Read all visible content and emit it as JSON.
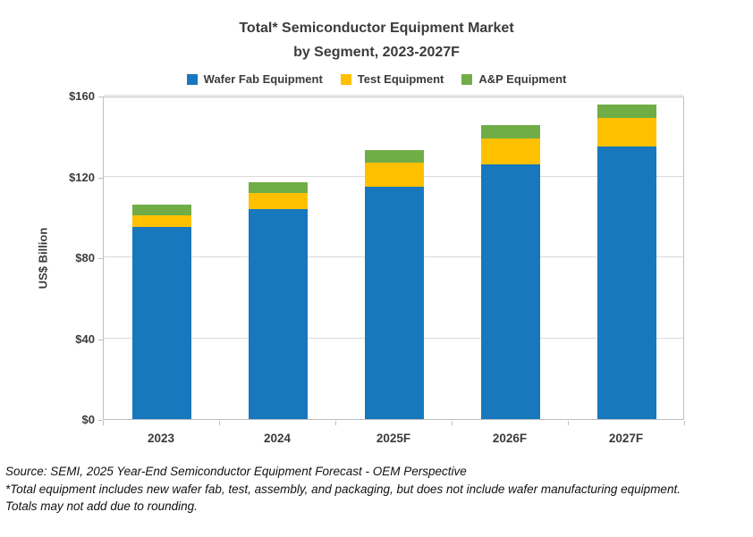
{
  "chart_data": {
    "type": "bar",
    "stacked": true,
    "title": "Total* Semiconductor Equipment Market",
    "subtitle": "by Segment, 2023-2027F",
    "ylabel": "US$ Billion",
    "xlabel": "",
    "ylim": [
      0,
      160
    ],
    "y_ticks": [
      0,
      40,
      80,
      120,
      160
    ],
    "y_tick_labels": [
      "$0",
      "$40",
      "$80",
      "$120",
      "$160"
    ],
    "categories": [
      "2023",
      "2024",
      "2025F",
      "2026F",
      "2027F"
    ],
    "series": [
      {
        "name": "Wafer Fab Equipment",
        "color": "#1878bd",
        "values": [
          95,
          104,
          115,
          126,
          135
        ]
      },
      {
        "name": "Test Equipment",
        "color": "#ffc000",
        "values": [
          6,
          8,
          12,
          13,
          14
        ]
      },
      {
        "name": "A&P Equipment",
        "color": "#70ad47",
        "values": [
          5,
          5,
          6,
          6.5,
          6.5
        ]
      }
    ],
    "totals": [
      106,
      117,
      133,
      145.5,
      155.5
    ],
    "legend_position": "top",
    "grid": true,
    "footnotes": [
      "Source: SEMI, 2025 Year-End Semiconductor Equipment Forecast - OEM Perspective",
      "*Total equipment includes new wafer fab, test, assembly, and packaging, but does not include wafer manufacturing equipment.",
      "Totals may not add due to rounding."
    ]
  }
}
